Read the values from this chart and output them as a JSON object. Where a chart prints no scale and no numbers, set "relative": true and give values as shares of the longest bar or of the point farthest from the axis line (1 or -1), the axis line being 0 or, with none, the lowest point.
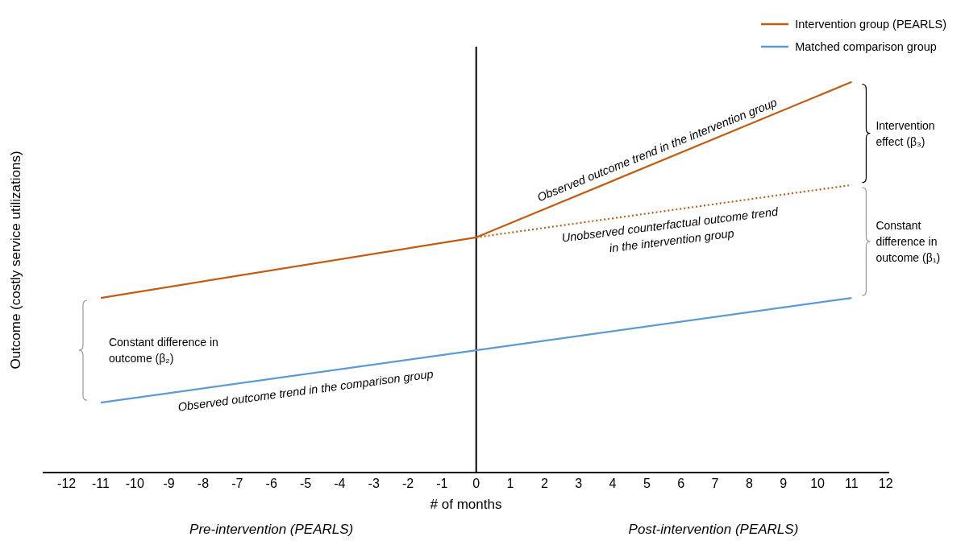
{
  "chart_data": {
    "type": "line",
    "relative": true,
    "xlabel": "# of months",
    "ylabel": "Outcome (costly service utilizations)",
    "xlim": [
      -12.7,
      12.1
    ],
    "xticks": [
      -12,
      -11,
      -10,
      -9,
      -8,
      -7,
      -6,
      -5,
      -4,
      -3,
      -2,
      -1,
      0,
      1,
      2,
      3,
      4,
      5,
      6,
      7,
      8,
      9,
      10,
      11,
      12
    ],
    "series": [
      {
        "name": "Intervention group (PEARLS)",
        "color": "#c55a11",
        "x": [
          -11,
          0,
          11
        ],
        "values": [
          0.447,
          0.602,
          1
        ],
        "line_style": "solid"
      },
      {
        "name": "Matched comparison group",
        "color": "#5b9bd5",
        "x": [
          -11,
          0,
          11
        ],
        "values": [
          0.179,
          0.313,
          0.447
        ],
        "line_style": "solid"
      },
      {
        "color": "#c55a11",
        "x": [
          0,
          11
        ],
        "values": [
          0.602,
          0.736
        ],
        "line_style": "dotted"
      }
    ],
    "ref_lines": [
      {
        "axis": "x",
        "value": 0,
        "color": "#000000"
      }
    ],
    "legend": "top right",
    "grid": false,
    "marker": "none",
    "annotations": [
      {
        "text": "Observed outcome trend in the intervention group",
        "x": 5.3,
        "y": 0.794
      },
      {
        "text": "Unobserved counterfactual outcome trend in the intervention group",
        "x": 5.7,
        "y": 0.671
      },
      {
        "text": "Observed outcome trend in the comparison group",
        "x": -5,
        "y": 0.252
      },
      "Intervention effect (β₃)",
      "Constant difference in outcome (β₁)",
      "Constant difference in outcome (β₂)",
      "Pre-intervention (PEARLS)",
      "Post-intervention (PEARLS)"
    ]
  }
}
